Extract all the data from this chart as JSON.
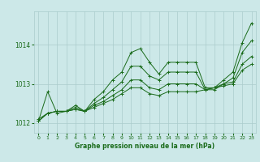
{
  "background_color": "#cce8e8",
  "grid_color": "#aacccc",
  "line_color": "#1a6b1a",
  "text_color": "#1a6b1a",
  "xlabel": "Graphe pression niveau de la mer (hPa)",
  "ylim": [
    1011.75,
    1014.85
  ],
  "xlim": [
    -0.5,
    23.5
  ],
  "yticks": [
    1012,
    1013,
    1014
  ],
  "xticks": [
    0,
    1,
    2,
    3,
    4,
    5,
    6,
    7,
    8,
    9,
    10,
    11,
    12,
    13,
    14,
    15,
    16,
    17,
    18,
    19,
    20,
    21,
    22,
    23
  ],
  "series": [
    [
      1012.05,
      1012.8,
      1012.25,
      1012.3,
      1012.45,
      1012.3,
      1012.6,
      1012.8,
      1013.1,
      1013.3,
      1013.8,
      1013.9,
      1013.55,
      1013.25,
      1013.55,
      1013.55,
      1013.55,
      1013.55,
      1012.9,
      1012.9,
      1013.1,
      1013.3,
      1014.05,
      1014.55
    ],
    [
      1012.05,
      1012.25,
      1012.3,
      1012.3,
      1012.4,
      1012.3,
      1012.5,
      1012.65,
      1012.85,
      1013.05,
      1013.45,
      1013.45,
      1013.2,
      1013.1,
      1013.3,
      1013.3,
      1013.3,
      1013.3,
      1012.85,
      1012.85,
      1013.0,
      1013.15,
      1013.8,
      1014.1
    ],
    [
      1012.05,
      1012.25,
      1012.3,
      1012.3,
      1012.35,
      1012.3,
      1012.45,
      1012.55,
      1012.7,
      1012.85,
      1013.1,
      1013.1,
      1012.9,
      1012.85,
      1013.0,
      1013.0,
      1013.0,
      1013.0,
      1012.85,
      1012.9,
      1013.0,
      1013.05,
      1013.5,
      1013.7
    ],
    [
      1012.1,
      1012.25,
      1012.3,
      1012.3,
      1012.35,
      1012.3,
      1012.4,
      1012.5,
      1012.6,
      1012.75,
      1012.9,
      1012.9,
      1012.75,
      1012.7,
      1012.8,
      1012.8,
      1012.8,
      1012.8,
      1012.85,
      1012.9,
      1012.95,
      1013.0,
      1013.35,
      1013.5
    ]
  ]
}
